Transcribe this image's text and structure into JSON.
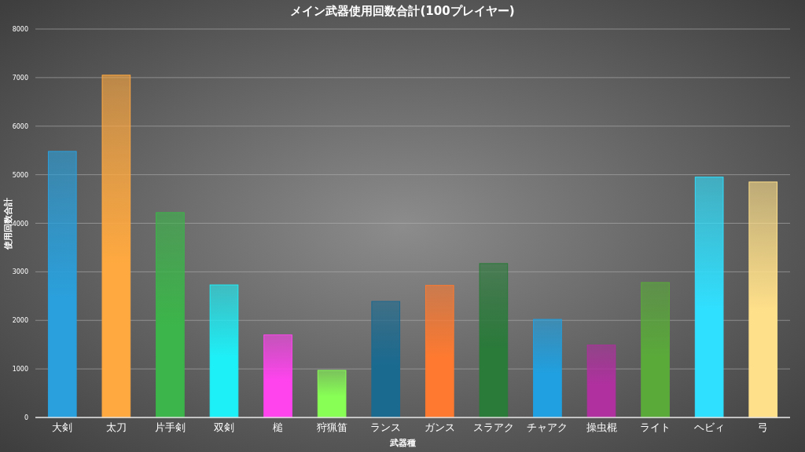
{
  "chart_data": {
    "type": "bar",
    "title": "メイン武器使用回数合計(100プレイヤー)",
    "xlabel": "武器種",
    "ylabel": "使用回数合計",
    "categories": [
      "大剣",
      "太刀",
      "片手剣",
      "双剣",
      "槌",
      "狩猟笛",
      "ランス",
      "ガンス",
      "スラアク",
      "チャアク",
      "操虫棍",
      "ライト",
      "ヘビィ",
      "弓"
    ],
    "values": [
      5480,
      7050,
      4220,
      2730,
      1700,
      970,
      2390,
      2720,
      3170,
      2020,
      1490,
      2780,
      4950,
      4850
    ],
    "colors": [
      "#2aa0dc",
      "#ffa940",
      "#3cb54a",
      "#1ef0f8",
      "#ff44ee",
      "#88ff55",
      "#1a6a90",
      "#ff7a30",
      "#2a7a3a",
      "#20a0e0",
      "#b030a0",
      "#5aaa3a",
      "#30e0ff",
      "#ffe08a"
    ],
    "ylim": [
      0,
      8000
    ],
    "yticks": [
      0,
      1000,
      2000,
      3000,
      4000,
      5000,
      6000,
      7000,
      8000
    ],
    "grid": "y"
  }
}
